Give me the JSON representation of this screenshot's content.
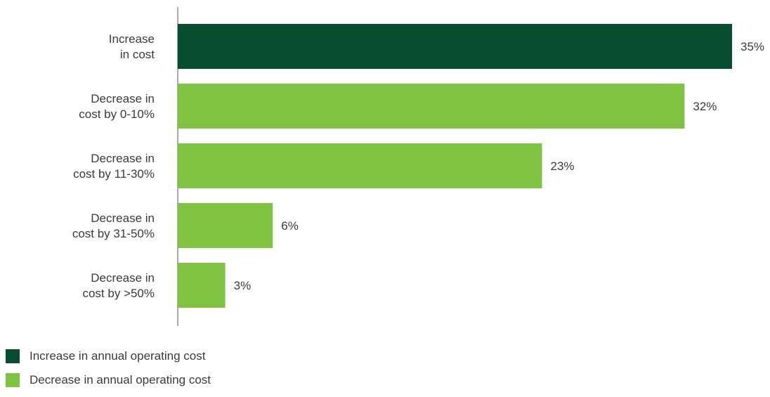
{
  "colors": {
    "increase": "#074d2f",
    "decrease": "#80c241",
    "axis": "#555555",
    "text": "#3a3a3a"
  },
  "chart_data": {
    "type": "bar",
    "orientation": "horizontal",
    "categories": [
      [
        "Increase",
        "in cost"
      ],
      [
        "Decrease in",
        "cost by 0-10%"
      ],
      [
        "Decrease in",
        "cost by 11-30%"
      ],
      [
        "Decrease in",
        "cost by 31-50%"
      ],
      [
        "Decrease in",
        "cost by >50%"
      ]
    ],
    "values": [
      35,
      32,
      23,
      6,
      3
    ],
    "value_labels": [
      "35%",
      "32%",
      "23%",
      "6%",
      "3%"
    ],
    "groups": [
      "increase",
      "decrease",
      "decrease",
      "decrease",
      "decrease"
    ],
    "xlim": [
      0,
      35
    ],
    "grid": false,
    "legend_position": "bottom-left"
  },
  "legend": {
    "items": [
      {
        "label": "Increase in annual operating cost",
        "color": "#074d2f"
      },
      {
        "label": "Decrease in annual operating cost",
        "color": "#80c241"
      }
    ]
  }
}
